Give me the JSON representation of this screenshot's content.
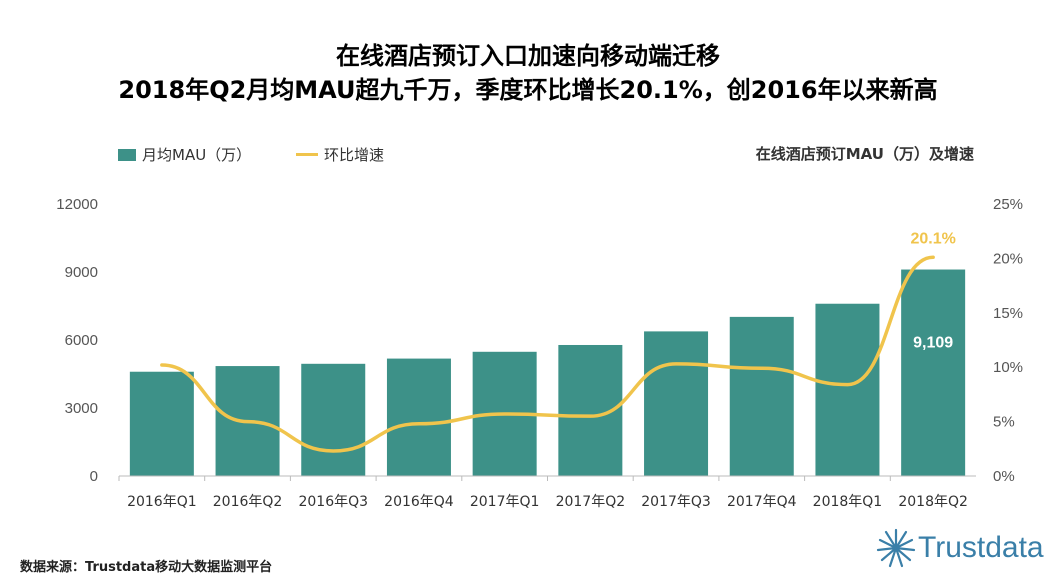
{
  "header": {
    "title_line1": "在线酒店预订入口加速向移动端迁移",
    "title_line2": "2018年Q2月均MAU超九千万，季度环比增长20.1%，创2016年以来新高"
  },
  "legend": {
    "bar_label": "月均MAU（万）",
    "line_label": "环比增速"
  },
  "chart_subtitle": "在线酒店预订MAU（万）及增速",
  "chart_data": {
    "type": "bar+line",
    "title": "在线酒店预订MAU（万）及增速",
    "categories": [
      "2016年Q1",
      "2016年Q2",
      "2016年Q3",
      "2016年Q4",
      "2017年Q1",
      "2017年Q2",
      "2017年Q3",
      "2017年Q4",
      "2018年Q1",
      "2018年Q2"
    ],
    "series": [
      {
        "name": "月均MAU（万）",
        "type": "bar",
        "axis": "left",
        "values": [
          4600,
          4850,
          4950,
          5180,
          5480,
          5780,
          6380,
          7020,
          7600,
          9109
        ]
      },
      {
        "name": "环比增速",
        "type": "line",
        "axis": "right",
        "unit": "%",
        "values": [
          10.2,
          5.0,
          2.3,
          4.8,
          5.7,
          5.5,
          10.3,
          9.9,
          8.4,
          20.1
        ]
      }
    ],
    "left_axis": {
      "min": 0,
      "max": 12000,
      "ticks": [
        "0",
        "3000",
        "6000",
        "9000",
        "12000"
      ]
    },
    "right_axis": {
      "min": 0,
      "max": 25,
      "ticks": [
        "0%",
        "5%",
        "10%",
        "15%",
        "20%",
        "25%"
      ]
    },
    "annotations": {
      "last_bar_label": "9,109",
      "last_point_label": "20.1%"
    },
    "colors": {
      "bar": "#3d9188",
      "line": "#f0c44c",
      "bar_label": "#ffffff",
      "point_label": "#f0c44c"
    }
  },
  "footer": {
    "source": "数据来源：Trustdata移动大数据监测平台",
    "brand": "Trustdata"
  }
}
